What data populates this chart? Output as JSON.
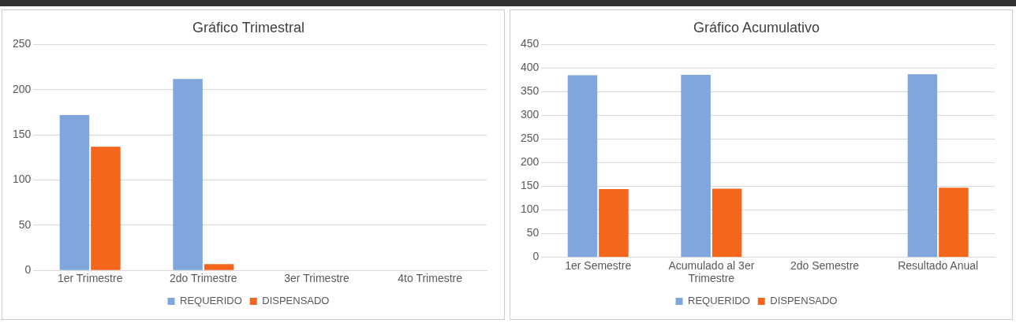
{
  "chart_data": [
    {
      "type": "bar",
      "title": "Gráfico Trimestral",
      "categories": [
        "1er Trimestre",
        "2do Trimestre",
        "3er Trimestre",
        "4to Trimestre"
      ],
      "series": [
        {
          "name": "REQUERIDO",
          "color": "#7fa6dd",
          "values": [
            172,
            212,
            0,
            0
          ]
        },
        {
          "name": "DISPENSADO",
          "color": "#f4661b",
          "values": [
            137,
            7,
            0,
            0
          ]
        }
      ],
      "ylim": [
        0,
        250
      ],
      "yticks": [
        0,
        50,
        100,
        150,
        200,
        250
      ],
      "grid": "y",
      "legend": "bottom"
    },
    {
      "type": "bar",
      "title": "Gráfico Acumulativo",
      "categories": [
        "1er Semestre",
        "Acumulado al 3er Trimestre",
        "2do Semestre",
        "Resultado Anual"
      ],
      "series": [
        {
          "name": "REQUERIDO",
          "color": "#7fa6dd",
          "values": [
            385,
            386,
            0,
            387
          ]
        },
        {
          "name": "DISPENSADO",
          "color": "#f4661b",
          "values": [
            144,
            145,
            0,
            147
          ]
        }
      ],
      "ylim": [
        0,
        450
      ],
      "yticks": [
        0,
        50,
        100,
        150,
        200,
        250,
        300,
        350,
        400,
        450
      ],
      "grid": "y",
      "legend": "bottom"
    }
  ]
}
